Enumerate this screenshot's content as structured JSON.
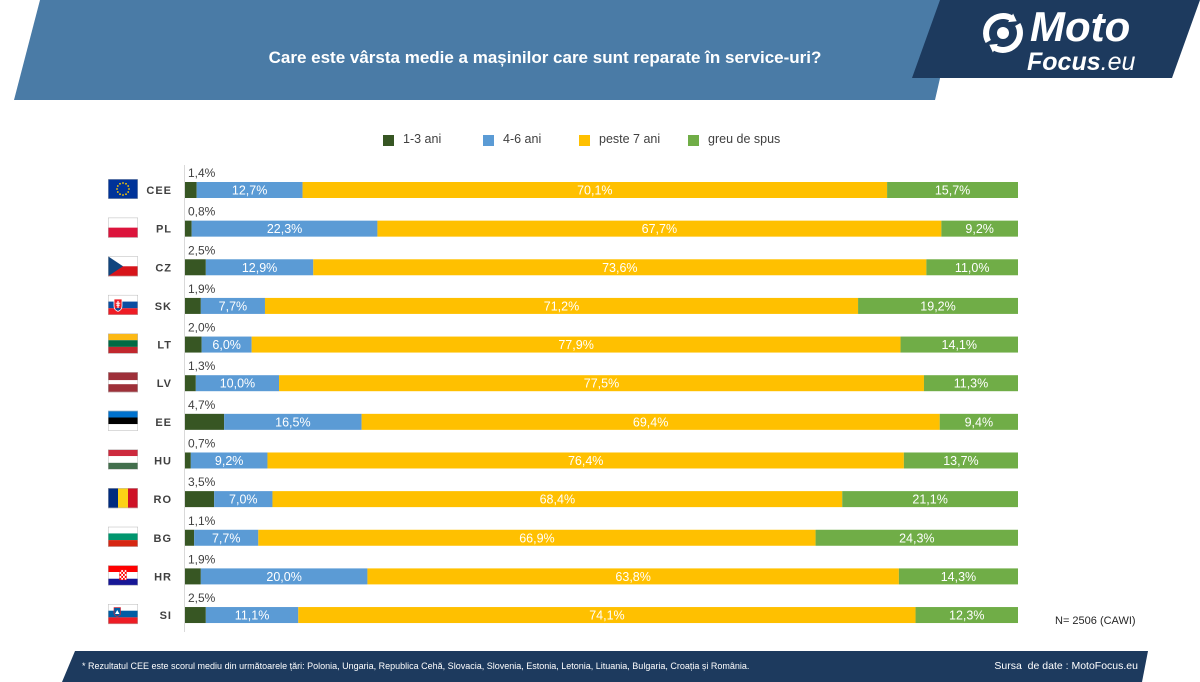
{
  "header": {
    "title": "Care este vârsta medie a mașinilor care sunt reparate în service-uri?"
  },
  "logo": {
    "word1": "Moto",
    "word2": "Focus",
    "suffix": ".eu",
    "icon": "refresh-icon"
  },
  "colors": {
    "banner": "#4a7ba6",
    "logo_box": "#1d3a5e",
    "footer": "#1d3a5e"
  },
  "chart_data": {
    "type": "bar",
    "orientation": "horizontal",
    "stacked": true,
    "categories": [
      "CEE",
      "PL",
      "CZ",
      "SK",
      "LT",
      "LV",
      "EE",
      "HU",
      "RO",
      "BG",
      "HR",
      "SI"
    ],
    "category_icons": [
      "eu-flag-icon",
      "poland-flag-icon",
      "czech-flag-icon",
      "slovakia-flag-icon",
      "lithuania-flag-icon",
      "latvia-flag-icon",
      "estonia-flag-icon",
      "hungary-flag-icon",
      "romania-flag-icon",
      "bulgaria-flag-icon",
      "croatia-flag-icon",
      "slovenia-flag-icon"
    ],
    "series": [
      {
        "name": "1-3 ani",
        "color": "#375623",
        "values": [
          1.4,
          0.8,
          2.5,
          1.9,
          2.0,
          1.3,
          4.7,
          0.7,
          3.5,
          1.1,
          1.9,
          2.5
        ]
      },
      {
        "name": "4-6 ani",
        "color": "#5b9bd5",
        "values": [
          12.7,
          22.3,
          12.9,
          7.7,
          6.0,
          10.0,
          16.5,
          9.2,
          7.0,
          7.7,
          20.0,
          11.1
        ]
      },
      {
        "name": "peste 7 ani",
        "color": "#ffc000",
        "values": [
          70.1,
          67.7,
          73.6,
          71.2,
          77.9,
          77.5,
          69.4,
          76.4,
          68.4,
          66.9,
          63.8,
          74.1
        ]
      },
      {
        "name": "greu de spus",
        "color": "#70ad47",
        "values": [
          15.7,
          9.2,
          11.0,
          19.2,
          14.1,
          11.3,
          9.4,
          13.7,
          21.1,
          24.3,
          14.3,
          12.3
        ]
      }
    ],
    "xlim": [
      0,
      100
    ],
    "legend_position": "top",
    "data_labels": true,
    "grid": false
  },
  "sample_note": "N= 2506 (CAWI)",
  "footer": {
    "footnote": "* Rezultatul CEE este scorul mediu din următoarele țări: Polonia, Ungaria, Republica Cehă, Slovacia, Slovenia, Estonia, Letonia, Lituania, Bulgaria, Croația și România.",
    "source": "Sursa  de date : MotoFocus.eu"
  }
}
